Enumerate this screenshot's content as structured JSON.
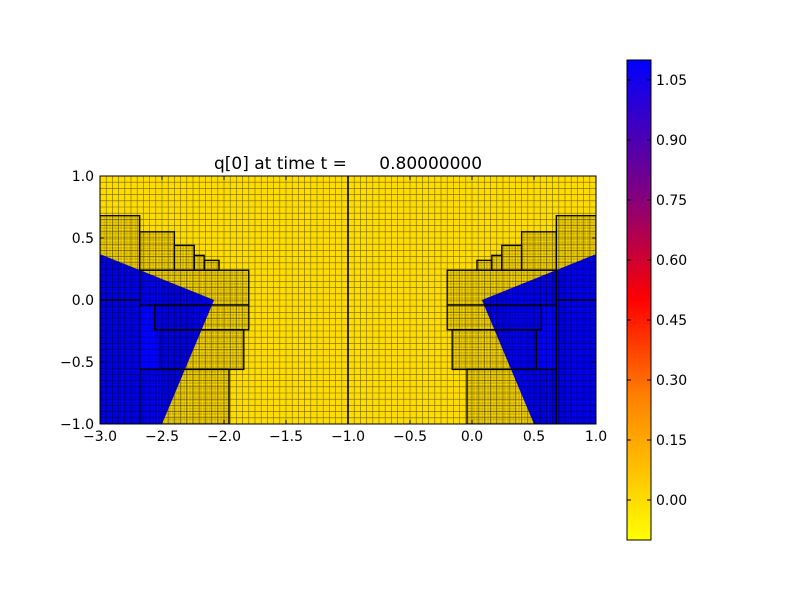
{
  "chart_data": [
    {
      "type": "heatmap",
      "title": "q[0] at time t =      0.80000000",
      "xlabel": "",
      "ylabel": "",
      "xlim": [
        -3.0,
        1.0
      ],
      "ylim": [
        -1.0,
        1.0
      ],
      "grid": false,
      "x_ticks": [
        -3.0,
        -2.5,
        -2.0,
        -1.5,
        -1.0,
        -0.5,
        0.0,
        0.5,
        1.0
      ],
      "x_tick_labels": [
        "−3.0",
        "−2.5",
        "−2.0",
        "−1.5",
        "−1.0",
        "−0.5",
        "0.0",
        "0.5",
        "1.0"
      ],
      "y_ticks": [
        1.0,
        0.5,
        0.0,
        -0.5,
        -1.0
      ],
      "y_tick_labels": [
        "1.0",
        "0.5",
        "0.0",
        "−0.5",
        "−1.0"
      ],
      "background_value": 0.0,
      "high_value": 1.1,
      "mesh_spacing": 0.05,
      "fine_mesh_spacing": 0.025,
      "center_line_x": -1.0,
      "regions": [
        {
          "name": "left-lower-blue",
          "value": 1.1,
          "polygon": [
            [
              -3.0,
              -1.0
            ],
            [
              -2.5,
              -1.0
            ],
            [
              -2.08,
              0.0
            ],
            [
              -3.0,
              0.37
            ]
          ]
        },
        {
          "name": "right-lower-blue",
          "value": 1.1,
          "polygon": [
            [
              1.0,
              -1.0
            ],
            [
              0.5,
              -1.0
            ],
            [
              0.08,
              0.0
            ],
            [
              1.0,
              0.37
            ]
          ]
        }
      ],
      "refinement_patches": [
        {
          "x": [
            -3.0,
            -2.68
          ],
          "y": [
            -1.0,
            0.0
          ],
          "spacing": 0.0125
        },
        {
          "x": [
            -3.0,
            -2.68
          ],
          "y": [
            0.0,
            0.68
          ],
          "spacing": 0.0125
        },
        {
          "x": [
            -2.68,
            -2.4
          ],
          "y": [
            0.24,
            0.55
          ],
          "spacing": 0.0125
        },
        {
          "x": [
            -2.4,
            -2.24
          ],
          "y": [
            0.24,
            0.44
          ],
          "spacing": 0.0125
        },
        {
          "x": [
            -2.24,
            -2.16
          ],
          "y": [
            0.24,
            0.36
          ],
          "spacing": 0.0125
        },
        {
          "x": [
            -2.16,
            -2.04
          ],
          "y": [
            0.24,
            0.32
          ],
          "spacing": 0.0125
        },
        {
          "x": [
            -2.68,
            -1.8
          ],
          "y": [
            -0.04,
            0.24
          ],
          "spacing": 0.0125
        },
        {
          "x": [
            -2.56,
            -1.8
          ],
          "y": [
            -0.24,
            -0.04
          ],
          "spacing": 0.0125
        },
        {
          "x": [
            -2.52,
            -1.84
          ],
          "y": [
            -0.56,
            -0.24
          ],
          "spacing": 0.0125
        },
        {
          "x": [
            -2.68,
            -1.96
          ],
          "y": [
            -1.0,
            -0.56
          ],
          "spacing": 0.0125
        },
        {
          "x": [
            0.68,
            1.0
          ],
          "y": [
            -1.0,
            0.0
          ],
          "spacing": 0.0125
        },
        {
          "x": [
            0.68,
            1.0
          ],
          "y": [
            0.0,
            0.68
          ],
          "spacing": 0.0125
        },
        {
          "x": [
            0.4,
            0.68
          ],
          "y": [
            0.24,
            0.55
          ],
          "spacing": 0.0125
        },
        {
          "x": [
            0.24,
            0.4
          ],
          "y": [
            0.24,
            0.44
          ],
          "spacing": 0.0125
        },
        {
          "x": [
            0.16,
            0.24
          ],
          "y": [
            0.24,
            0.36
          ],
          "spacing": 0.0125
        },
        {
          "x": [
            0.04,
            0.16
          ],
          "y": [
            0.24,
            0.32
          ],
          "spacing": 0.0125
        },
        {
          "x": [
            -0.2,
            0.68
          ],
          "y": [
            -0.04,
            0.24
          ],
          "spacing": 0.0125
        },
        {
          "x": [
            -0.2,
            0.56
          ],
          "y": [
            -0.24,
            -0.04
          ],
          "spacing": 0.0125
        },
        {
          "x": [
            -0.16,
            0.52
          ],
          "y": [
            -0.56,
            -0.24
          ],
          "spacing": 0.0125
        },
        {
          "x": [
            -0.04,
            0.68
          ],
          "y": [
            -1.0,
            -0.56
          ],
          "spacing": 0.0125
        }
      ]
    },
    {
      "type": "colorbar",
      "range": [
        -0.1,
        1.1
      ],
      "ticks": [
        0.0,
        0.15,
        0.3,
        0.45,
        0.6,
        0.75,
        0.9,
        1.05
      ],
      "tick_labels": [
        "0.00",
        "0.15",
        "0.30",
        "0.45",
        "0.60",
        "0.75",
        "0.90",
        "1.05"
      ],
      "colors": {
        "low": "#ffff00",
        "orange": "#ff8000",
        "mid": "#ff0000",
        "purple": "#800080",
        "high": "#0000ff"
      }
    }
  ]
}
